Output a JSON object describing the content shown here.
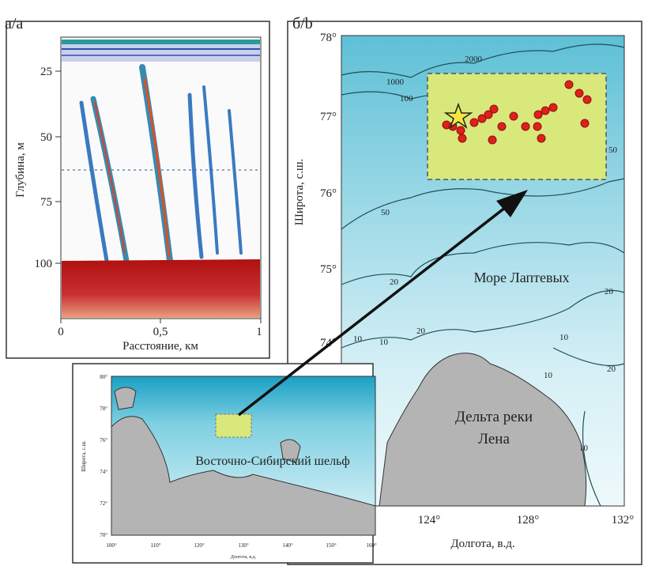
{
  "panel_a": {
    "label": "а/а",
    "ylabel": "Глубина, м",
    "xlabel": "Расстояние, км",
    "yticks": [
      "25",
      "50",
      "75",
      "100"
    ],
    "xticks": [
      "0",
      "0,5",
      "1"
    ]
  },
  "panel_b": {
    "label": "б/b",
    "ylabel": "Широта, с.ш.",
    "xlabel": "Долгота, в.д.",
    "yticks": [
      "78°",
      "77°",
      "76°",
      "75°",
      "74°"
    ],
    "xticks": [
      "124°",
      "128°",
      "132°"
    ],
    "sea_label": "Море Лаптевых",
    "land_label_1": "Дельта реки",
    "land_label_2": "Лена",
    "contour_labels": [
      "2000",
      "1000",
      "100",
      "50",
      "50",
      "20",
      "20",
      "20",
      "10",
      "10",
      "10",
      "10",
      "20",
      "10"
    ],
    "colors": {
      "sea_deep": "#5fc0d8",
      "sea_shallow": "#d9f0f5",
      "land": "#b4b4b4",
      "study_area": "#d9e87a",
      "seeps": "#e0201a",
      "star": "#f5e640"
    }
  },
  "inset": {
    "ylabel": "Широта, с.ш.",
    "xlabel": "Долгота, в.д.",
    "yticks": [
      "80°",
      "78°",
      "76°",
      "74°",
      "72°",
      "70°"
    ],
    "xticks": [
      "100°",
      "110°",
      "120°",
      "130°",
      "140°",
      "150°",
      "160°"
    ],
    "region_label": "Восточно-Сибирский шельф"
  }
}
